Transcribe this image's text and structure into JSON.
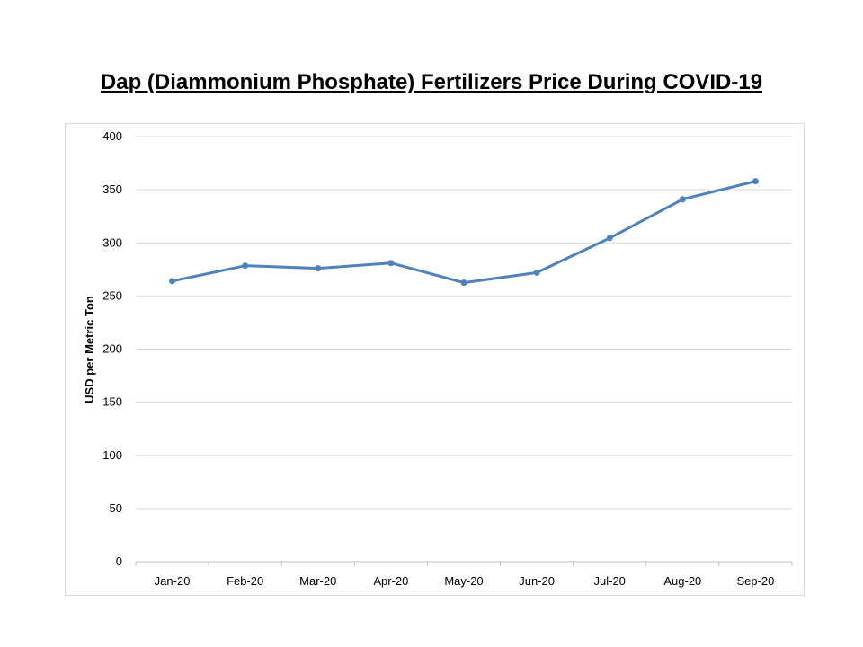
{
  "chart_data": {
    "type": "line",
    "title": "Dap (Diammonium Phosphate) Fertilizers Price During COVID-19",
    "xlabel": "",
    "ylabel": "USD per Metric Ton",
    "categories": [
      "Jan-20",
      "Feb-20",
      "Mar-20",
      "Apr-20",
      "May-20",
      "Jun-20",
      "Jul-20",
      "Aug-20",
      "Sep-20"
    ],
    "series": [
      {
        "values": [
          264,
          278.5,
          276,
          281,
          262.5,
          272,
          304.5,
          341,
          358
        ]
      }
    ],
    "ylim": [
      0,
      400
    ],
    "yticks": [
      "0",
      "50",
      "100",
      "150",
      "200",
      "250",
      "300",
      "350",
      "400"
    ],
    "grid": true,
    "legend": "none",
    "colors": {
      "line": "#4f81bd",
      "grid": "#d9d9d9"
    }
  }
}
